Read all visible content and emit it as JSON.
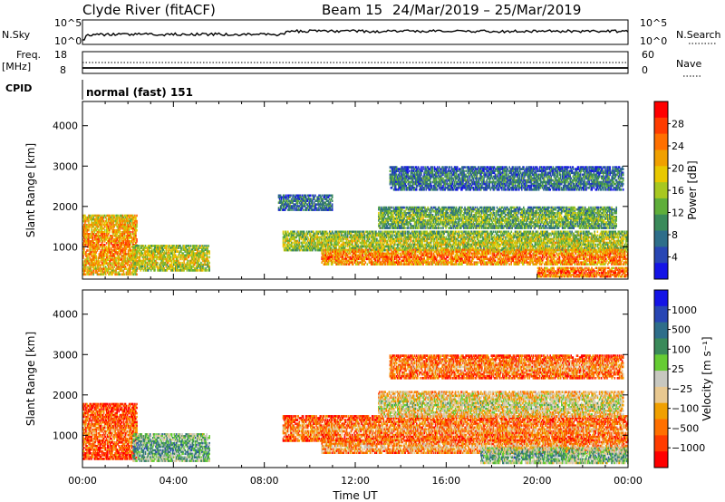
{
  "header": {
    "station": "Clyde River (fitACF)",
    "beam": "Beam 15",
    "dates": "24/Mar/2019 – 25/Mar/2019"
  },
  "top_panels": {
    "nsky_label": "N.Sky",
    "nsky_tick_top": "10^5",
    "nsky_tick_bottom": "10^0",
    "nsearch_label": "N.Search",
    "nsearch_tick_top": "10^5",
    "nsearch_tick_bottom": "10^0",
    "freq_label": "Freq.",
    "freq_unit": "[MHz]",
    "freq_tick_top": "18",
    "freq_tick_bottom": "8",
    "nave_label": "Nave",
    "nave_tick_top": "60",
    "nave_tick_bottom": "0",
    "cpid_label": "CPID",
    "cpid_value": "normal (fast) 151"
  },
  "chart_data": [
    {
      "type": "heatmap",
      "name": "power",
      "ylabel": "Slant Range [km]",
      "xlabel": "",
      "x_ticks": [
        "00:00",
        "04:00",
        "08:00",
        "12:00",
        "16:00",
        "20:00",
        "00:00"
      ],
      "y_ticks": [
        1000,
        2000,
        3000,
        4000
      ],
      "ylim": [
        200,
        4600
      ],
      "xlim_hours": [
        0,
        24
      ],
      "colorbar": {
        "label": "Power [dB]",
        "ticks": [
          "4",
          "8",
          "12",
          "16",
          "20",
          "24",
          "28"
        ],
        "range": [
          0,
          30
        ],
        "colors": [
          "#1414e6",
          "#2846b4",
          "#2e6e8a",
          "#3a8a5a",
          "#5fae3a",
          "#a8c820",
          "#e8c800",
          "#f0a000",
          "#ff7000",
          "#ff3c00",
          "#ff0000"
        ]
      },
      "bands": [
        {
          "t0": 0.0,
          "t1": 2.4,
          "r0": 300,
          "r1": 1800,
          "level": 0.75
        },
        {
          "t0": 2.2,
          "t1": 5.6,
          "r0": 400,
          "r1": 1050,
          "level": 0.6
        },
        {
          "t0": 8.8,
          "t1": 24.0,
          "r0": 900,
          "r1": 1400,
          "level": 0.55
        },
        {
          "t0": 10.5,
          "t1": 24.0,
          "r0": 550,
          "r1": 950,
          "level": 0.8
        },
        {
          "t0": 13.0,
          "t1": 23.5,
          "r0": 1450,
          "r1": 2000,
          "level": 0.45
        },
        {
          "t0": 8.6,
          "t1": 11.0,
          "r0": 1900,
          "r1": 2300,
          "level": 0.3
        },
        {
          "t0": 13.5,
          "t1": 23.8,
          "r0": 2400,
          "r1": 3000,
          "level": 0.3
        },
        {
          "t0": 20.0,
          "t1": 24.0,
          "r0": 250,
          "r1": 500,
          "level": 0.85
        }
      ]
    },
    {
      "type": "heatmap",
      "name": "velocity",
      "ylabel": "Slant Range [km]",
      "xlabel": "Time UT",
      "x_ticks": [
        "00:00",
        "04:00",
        "08:00",
        "12:00",
        "16:00",
        "20:00",
        "00:00"
      ],
      "y_ticks": [
        1000,
        2000,
        3000,
        4000
      ],
      "ylim": [
        200,
        4600
      ],
      "xlim_hours": [
        0,
        24
      ],
      "colorbar": {
        "label": "Velocity [m s⁻¹]",
        "ticks": [
          "1000",
          "500",
          "100",
          "25",
          "−25",
          "−100",
          "−500",
          "−1000"
        ],
        "range": [
          -1000,
          1000
        ],
        "colors": [
          "#ff0000",
          "#ff3c00",
          "#ff7000",
          "#f0a000",
          "#e8c890",
          "#c8c8c0",
          "#66cc33",
          "#3a8a5a",
          "#2e6e8a",
          "#2846b4",
          "#1414e6"
        ]
      },
      "bands": [
        {
          "t0": 0.0,
          "t1": 2.4,
          "r0": 400,
          "r1": 1800,
          "level": 0.25
        },
        {
          "t0": 2.2,
          "t1": 5.6,
          "r0": 350,
          "r1": 1050,
          "level": 0.7
        },
        {
          "t0": 8.8,
          "t1": 24.0,
          "r0": 850,
          "r1": 1500,
          "level": 0.3
        },
        {
          "t0": 10.5,
          "t1": 24.0,
          "r0": 550,
          "r1": 900,
          "level": 0.35
        },
        {
          "t0": 13.0,
          "t1": 23.8,
          "r0": 1450,
          "r1": 2100,
          "level": 0.5
        },
        {
          "t0": 13.5,
          "t1": 23.8,
          "r0": 2400,
          "r1": 3000,
          "level": 0.3
        },
        {
          "t0": 17.5,
          "t1": 24.0,
          "r0": 300,
          "r1": 700,
          "level": 0.65
        }
      ]
    }
  ]
}
